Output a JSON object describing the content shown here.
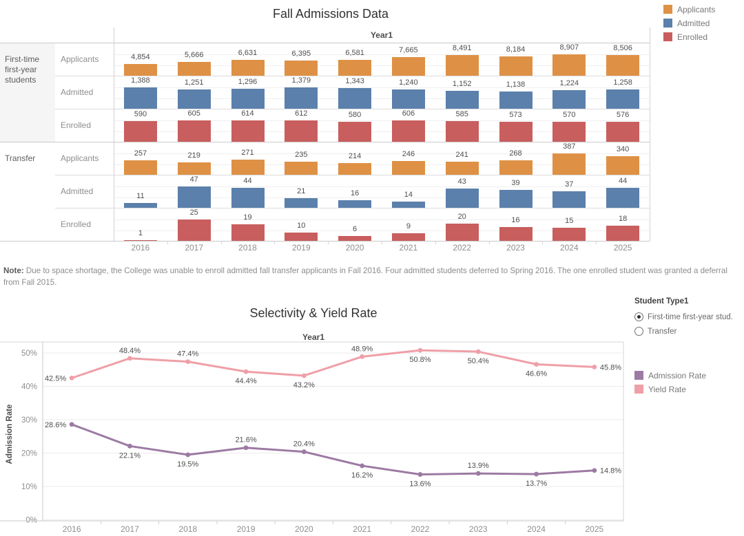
{
  "colors": {
    "applicants": "#DE9145",
    "admitted": "#5B80AB",
    "enrolled": "#C95E5E",
    "admission_rate": "#9C7AA3",
    "yield_rate": "#EF9FA7"
  },
  "note": {
    "prefix": "Note:",
    "text": " Due to space shortage, the College was unable to enroll admitted fall transfer applicants in Fall 2016. Four admitted students deferred to Spring 2016. The one enrolled student was granted a deferral from Fall 2015."
  },
  "chart_data": [
    {
      "type": "bar",
      "title": "Fall Admissions Data",
      "column_header": "Year1",
      "categories": [
        "2016",
        "2017",
        "2018",
        "2019",
        "2020",
        "2021",
        "2022",
        "2023",
        "2024",
        "2025"
      ],
      "legend": [
        {
          "label": "Applicants",
          "color_key": "applicants"
        },
        {
          "label": "Admitted",
          "color_key": "admitted"
        },
        {
          "label": "Enrolled",
          "color_key": "enrolled"
        }
      ],
      "row_groups": [
        {
          "label": "First-time first-year students",
          "rows": [
            {
              "label": "Applicants",
              "color_key": "applicants",
              "values": [
                4854,
                5666,
                6631,
                6395,
                6581,
                7665,
                8491,
                8184,
                8907,
                8506
              ],
              "labels": [
                "4,854",
                "5,666",
                "6,631",
                "6,395",
                "6,581",
                "7,665",
                "8,491",
                "8,184",
                "8,907",
                "8,506"
              ]
            },
            {
              "label": "Admitted",
              "color_key": "admitted",
              "values": [
                1388,
                1251,
                1296,
                1379,
                1343,
                1240,
                1152,
                1138,
                1224,
                1258
              ],
              "labels": [
                "1,388",
                "1,251",
                "1,296",
                "1,379",
                "1,343",
                "1,240",
                "1,152",
                "1,138",
                "1,224",
                "1,258"
              ]
            },
            {
              "label": "Enrolled",
              "color_key": "enrolled",
              "values": [
                590,
                605,
                614,
                612,
                580,
                606,
                585,
                573,
                570,
                576
              ],
              "labels": [
                "590",
                "605",
                "614",
                "612",
                "580",
                "606",
                "585",
                "573",
                "570",
                "576"
              ]
            }
          ]
        },
        {
          "label": "Transfer",
          "rows": [
            {
              "label": "Applicants",
              "color_key": "applicants",
              "values": [
                257,
                219,
                271,
                235,
                214,
                246,
                241,
                268,
                387,
                340
              ],
              "labels": [
                "257",
                "219",
                "271",
                "235",
                "214",
                "246",
                "241",
                "268",
                "387",
                "340"
              ]
            },
            {
              "label": "Admitted",
              "color_key": "admitted",
              "values": [
                11,
                47,
                44,
                21,
                16,
                14,
                43,
                39,
                37,
                44
              ],
              "labels": [
                "11",
                "47",
                "44",
                "21",
                "16",
                "14",
                "43",
                "39",
                "37",
                "44"
              ]
            },
            {
              "label": "Enrolled",
              "color_key": "enrolled",
              "values": [
                1,
                25,
                19,
                10,
                6,
                9,
                20,
                16,
                15,
                18
              ],
              "labels": [
                "1",
                "25",
                "19",
                "10",
                "6",
                "9",
                "20",
                "16",
                "15",
                "18"
              ]
            }
          ]
        }
      ]
    },
    {
      "type": "line",
      "title": "Selectivity & Yield Rate",
      "column_header": "Year1",
      "ylabel": "Admission Rate",
      "ylim": [
        0,
        55
      ],
      "grid": true,
      "legend_position": "right",
      "yticks": [
        {
          "label": "0%",
          "value": 0
        },
        {
          "label": "10%",
          "value": 10
        },
        {
          "label": "20%",
          "value": 20
        },
        {
          "label": "30%",
          "value": 30
        },
        {
          "label": "40%",
          "value": 40
        },
        {
          "label": "50%",
          "value": 50
        }
      ],
      "x": [
        "2016",
        "2017",
        "2018",
        "2019",
        "2020",
        "2021",
        "2022",
        "2023",
        "2024",
        "2025"
      ],
      "series": [
        {
          "name": "Yield Rate",
          "color_key": "yield_rate",
          "values": [
            42.5,
            48.4,
            47.4,
            44.4,
            43.2,
            48.9,
            50.8,
            50.4,
            46.6,
            45.8
          ],
          "labels": [
            "42.5%",
            "48.4%",
            "47.4%",
            "44.4%",
            "43.2%",
            "48.9%",
            "50.8%",
            "50.4%",
            "46.6%",
            "45.8%"
          ],
          "label_pos": [
            "left",
            "above",
            "above",
            "below",
            "below",
            "above",
            "below",
            "below",
            "below",
            "right"
          ]
        },
        {
          "name": "Admission Rate",
          "color_key": "admission_rate",
          "values": [
            28.6,
            22.1,
            19.5,
            21.6,
            20.4,
            16.2,
            13.6,
            13.9,
            13.7,
            14.8
          ],
          "labels": [
            "28.6%",
            "22.1%",
            "19.5%",
            "21.6%",
            "20.4%",
            "16.2%",
            "13.6%",
            "13.9%",
            "13.7%",
            "14.8%"
          ],
          "label_pos": [
            "left",
            "below",
            "below",
            "above",
            "above",
            "below",
            "below",
            "above",
            "below",
            "right"
          ]
        }
      ],
      "legend": [
        {
          "label": "Admission Rate",
          "color_key": "admission_rate"
        },
        {
          "label": "Yield Rate",
          "color_key": "yield_rate"
        }
      ],
      "filter": {
        "title": "Student Type1",
        "options": [
          {
            "label": "First-time first-year stud.",
            "selected": true
          },
          {
            "label": "Transfer",
            "selected": false
          }
        ]
      }
    }
  ]
}
